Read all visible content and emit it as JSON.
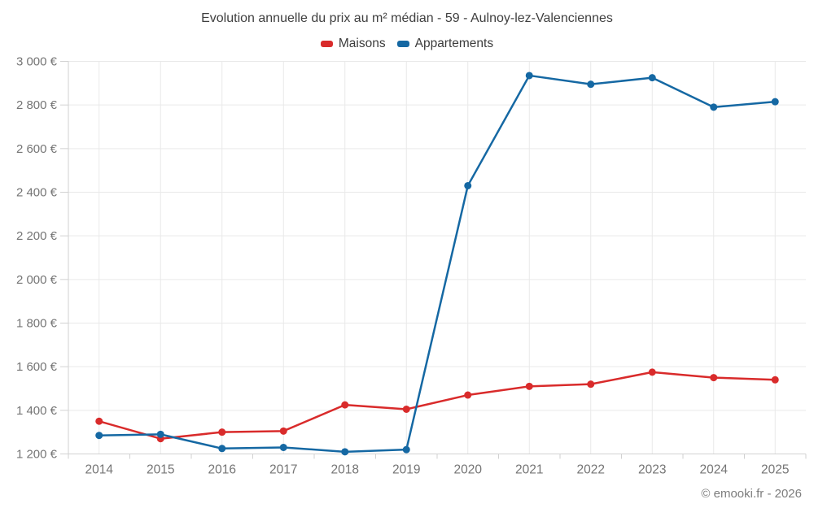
{
  "header": {
    "title": "Evolution annuelle du prix au m² médian - 59 - Aulnoy-lez-Valenciennes"
  },
  "footer": {
    "credit": "© emooki.fr - 2026"
  },
  "chart_data": {
    "type": "line",
    "title": "Evolution annuelle du prix au m² médian - 59 - Aulnoy-lez-Valenciennes",
    "categories": [
      "2014",
      "2015",
      "2016",
      "2017",
      "2018",
      "2019",
      "2020",
      "2021",
      "2022",
      "2023",
      "2024",
      "2025"
    ],
    "series": [
      {
        "name": "Maisons",
        "color": "#d92b2b",
        "values": [
          1350,
          1270,
          1300,
          1305,
          1425,
          1405,
          1470,
          1510,
          1520,
          1575,
          1550,
          1540
        ]
      },
      {
        "name": "Appartements",
        "color": "#1568a3",
        "values": [
          1285,
          1290,
          1225,
          1230,
          1210,
          1220,
          2430,
          2935,
          2895,
          2925,
          2790,
          2815
        ]
      }
    ],
    "xlabel": "",
    "ylabel": "",
    "ylim": [
      1200,
      3000
    ],
    "ytick_step": 200,
    "ytick_suffix": " €",
    "grid": true,
    "legend_position": "top",
    "colors": {
      "grid_line": "#e9e9e9",
      "axis_line": "#d2d2d2",
      "tick_label": "#757575",
      "title_text": "#3f3f3f",
      "credit_text": "#7d7d7d"
    }
  }
}
